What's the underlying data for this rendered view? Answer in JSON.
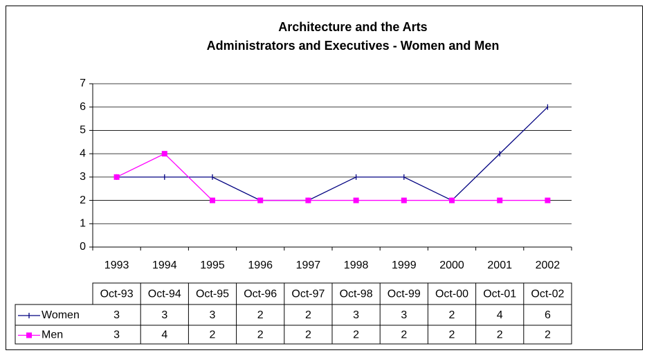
{
  "chart_data": {
    "type": "line",
    "title": [
      "Architecture and the Arts",
      "Administrators and Executives - Women and Men"
    ],
    "categories": [
      "1993",
      "1994",
      "1995",
      "1996",
      "1997",
      "1998",
      "1999",
      "2000",
      "2001",
      "2002"
    ],
    "table_header": [
      "Oct-93",
      "Oct-94",
      "Oct-95",
      "Oct-96",
      "Oct-97",
      "Oct-98",
      "Oct-99",
      "Oct-00",
      "Oct-01",
      "Oct-02"
    ],
    "series": [
      {
        "name": "Women",
        "color": "#000080",
        "marker": "plus",
        "values": [
          3,
          3,
          3,
          2,
          2,
          3,
          3,
          2,
          4,
          6
        ]
      },
      {
        "name": "Men",
        "color": "#ff00ff",
        "marker": "square",
        "values": [
          3,
          4,
          2,
          2,
          2,
          2,
          2,
          2,
          2,
          2
        ]
      }
    ],
    "ylim": [
      0,
      7
    ],
    "yticks": [
      0,
      1,
      2,
      3,
      4,
      5,
      6,
      7
    ],
    "grid": true
  }
}
